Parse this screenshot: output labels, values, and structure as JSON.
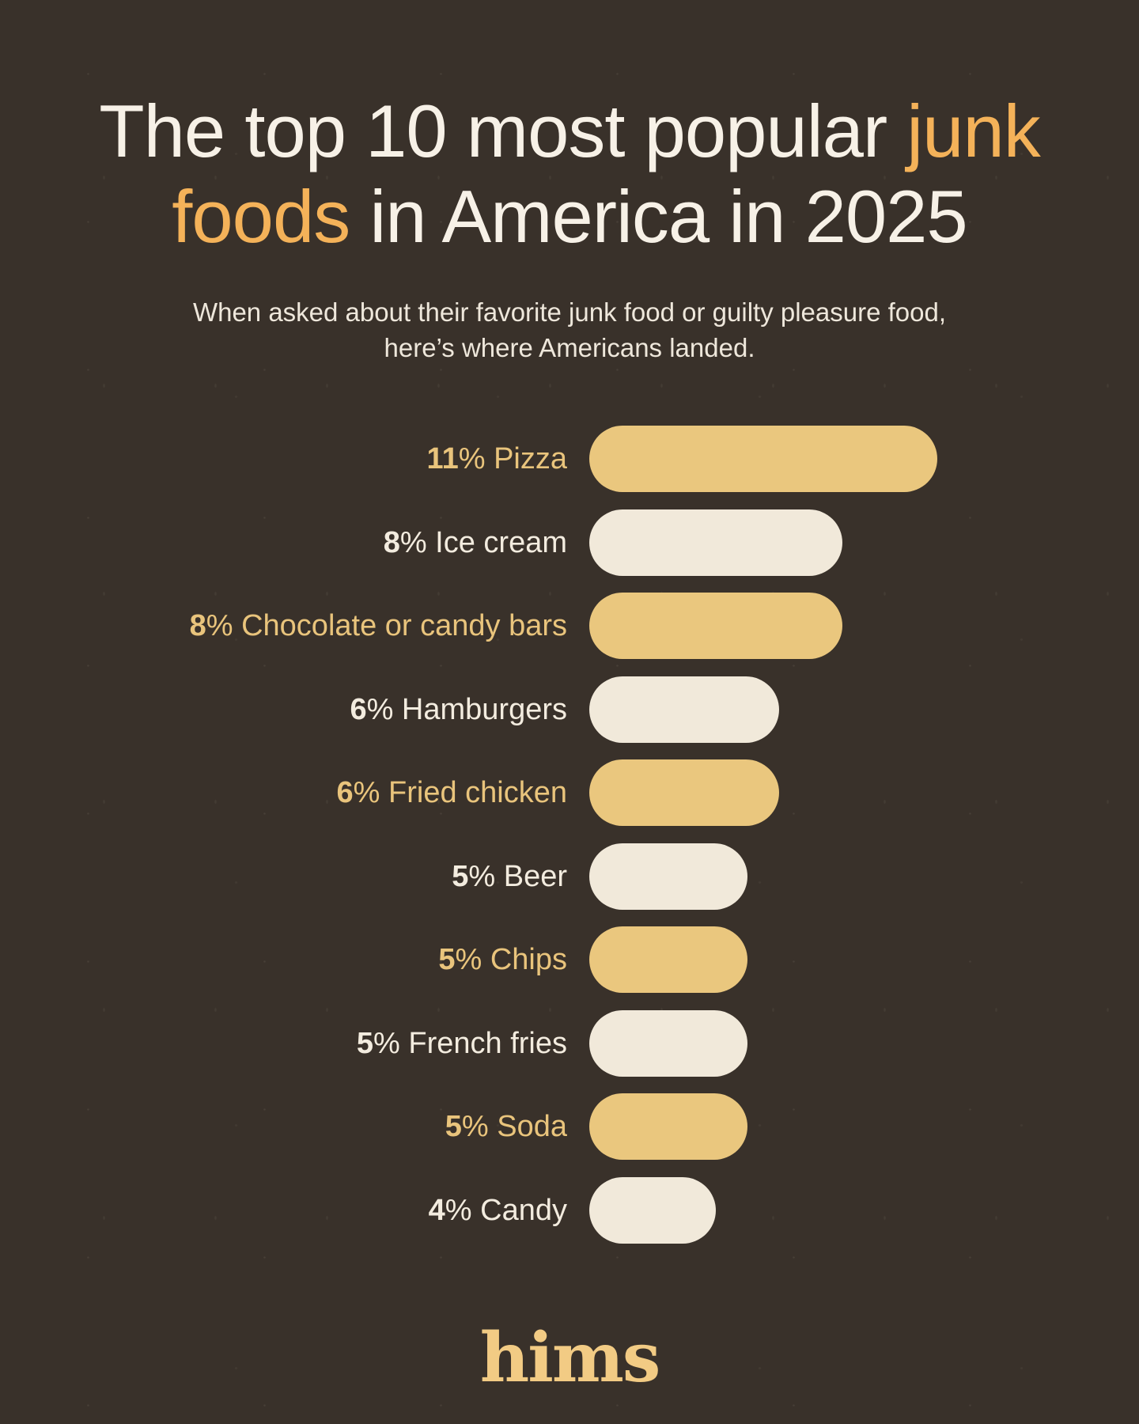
{
  "title": {
    "full_text": "The top 10 most popular junk foods in America in 2025",
    "lines": [
      [
        {
          "text": "The top 10 most popular ",
          "accent": false
        },
        {
          "text": "junk",
          "accent": true
        }
      ],
      [
        {
          "text": "foods",
          "accent": true
        },
        {
          "text": " in America in 2025",
          "accent": false
        }
      ]
    ]
  },
  "subtitle": {
    "lines": [
      "When asked about their favorite junk food or guilty pleasure food,",
      "here’s where Americans landed."
    ]
  },
  "chart_data": {
    "type": "bar",
    "orientation": "horizontal",
    "title": "The top 10 most popular junk foods in America in 2025",
    "unit": "%",
    "xlim": [
      0,
      11
    ],
    "grid": false,
    "legend": false,
    "categories": [
      "Pizza",
      "Ice cream",
      "Chocolate or candy bars",
      "Hamburgers",
      "Fried chicken",
      "Beer",
      "Chips",
      "French fries",
      "Soda",
      "Candy"
    ],
    "values": [
      11,
      8,
      8,
      6,
      6,
      5,
      5,
      5,
      5,
      4
    ],
    "data_labels": [
      "11% Pizza",
      "8% Ice cream",
      "8% Chocolate or candy bars",
      "6% Hamburgers",
      "6% Fried chicken",
      "5% Beer",
      "5% Chips",
      "5% French fries",
      "5% Soda",
      "4% Candy"
    ],
    "bar_color_pattern": [
      "gold",
      "cream"
    ]
  },
  "footer": {
    "logo_text": "hims"
  },
  "colors": {
    "background": "#39312a",
    "bar_gold": "#eac77e",
    "bar_cream": "#f1e9da",
    "label_gold": "#e9c47c",
    "label_cream": "#f3ecdf",
    "title_text": "#f7f1e7",
    "title_accent": "#f4b259",
    "subtitle_text": "#eee7db",
    "logo_gold": "#f2cb84"
  }
}
